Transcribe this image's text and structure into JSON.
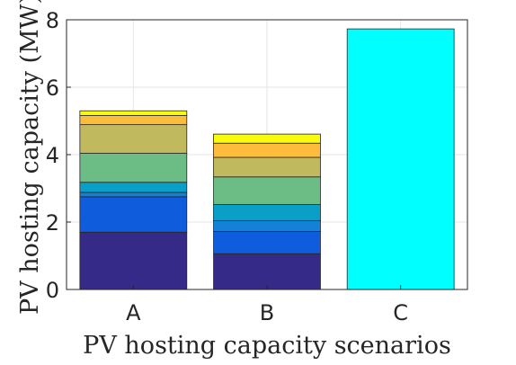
{
  "chart_data": {
    "type": "bar",
    "stacked": true,
    "title": "",
    "xlabel": "PV hosting capacity scenarios",
    "ylabel": "PV hosting capacity (MW)",
    "ylim": [
      0,
      8
    ],
    "yticks": [
      0,
      2,
      4,
      6,
      8
    ],
    "grid": true,
    "legend": "none",
    "categories": [
      "A",
      "B",
      "C"
    ],
    "stacks": [
      {
        "category": "A",
        "segments": [
          {
            "value": 1.7,
            "color": "#352a87"
          },
          {
            "value": 1.05,
            "color": "#0f5cdd"
          },
          {
            "value": 0.13,
            "color": "#1481d6"
          },
          {
            "value": 0.3,
            "color": "#0a9fc7"
          },
          {
            "value": 0.86,
            "color": "#6cbc85"
          },
          {
            "value": 0.85,
            "color": "#c0b95d"
          },
          {
            "value": 0.27,
            "color": "#fcbd3c"
          },
          {
            "value": 0.14,
            "color": "#f9fb0e"
          }
        ]
      },
      {
        "category": "B",
        "segments": [
          {
            "value": 1.06,
            "color": "#352a87"
          },
          {
            "value": 0.66,
            "color": "#0f5cdd"
          },
          {
            "value": 0.32,
            "color": "#1481d6"
          },
          {
            "value": 0.48,
            "color": "#0a9fc7"
          },
          {
            "value": 0.82,
            "color": "#6cbc85"
          },
          {
            "value": 0.58,
            "color": "#c0b95d"
          },
          {
            "value": 0.42,
            "color": "#fcbd3c"
          },
          {
            "value": 0.27,
            "color": "#f9fb0e"
          }
        ]
      },
      {
        "category": "C",
        "segments": [
          {
            "value": 7.73,
            "color": "#00ffff"
          }
        ]
      }
    ]
  }
}
